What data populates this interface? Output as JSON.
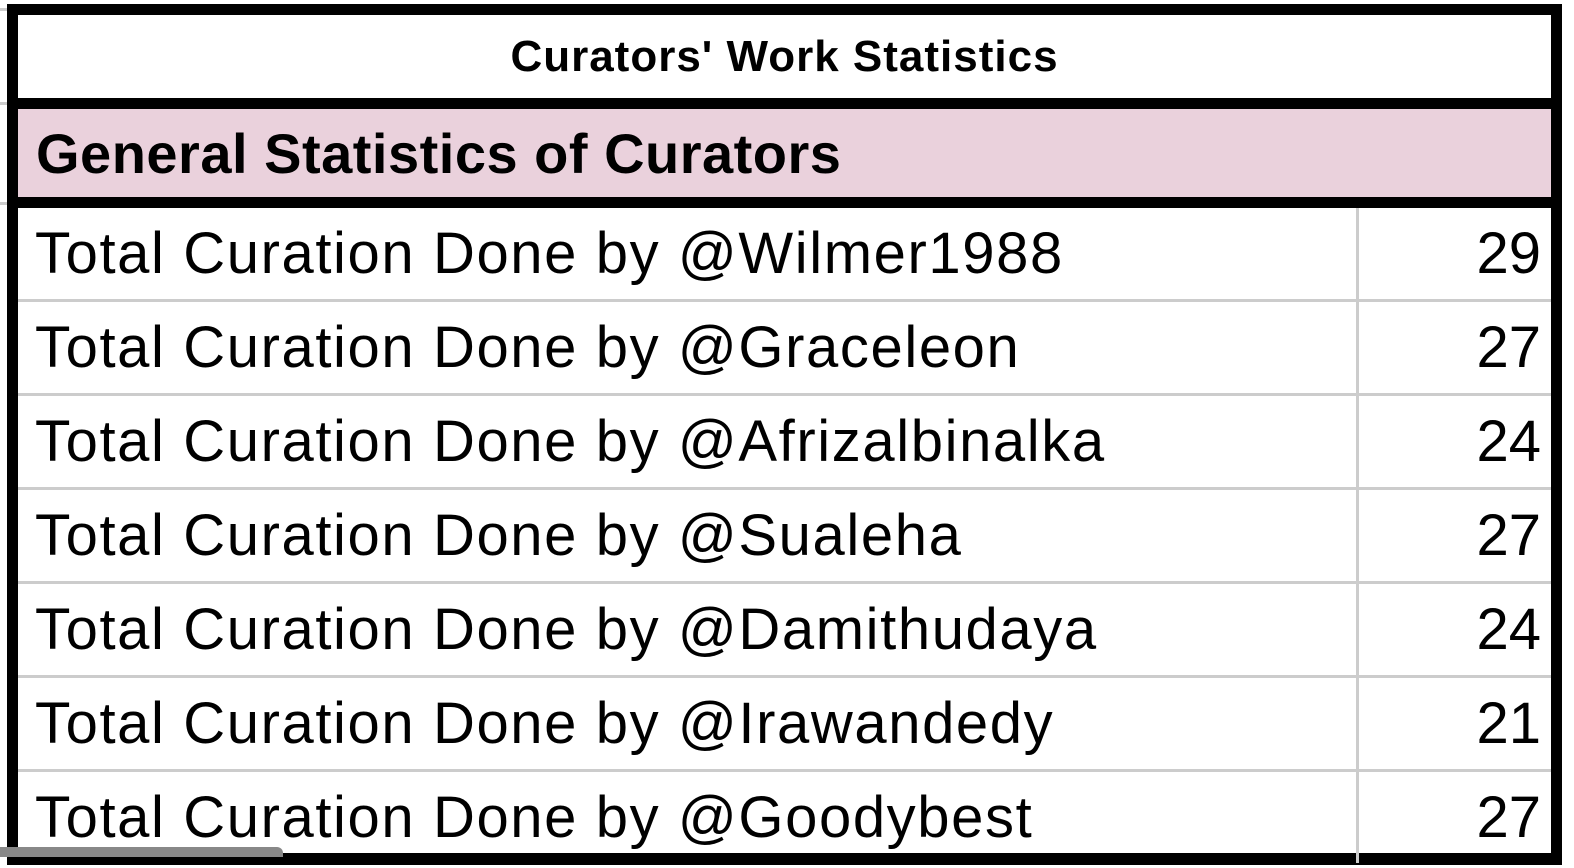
{
  "sheet": {
    "title": "Curators' Work Statistics",
    "section_header": "General Statistics of Curators",
    "header_color": "#ead1dc",
    "rows": [
      {
        "label": "Total Curation Done by @Wilmer1988",
        "value": "29"
      },
      {
        "label": "Total Curation Done by @Graceleon",
        "value": "27"
      },
      {
        "label": "Total Curation Done by @Afrizalbinalka",
        "value": "24"
      },
      {
        "label": "Total Curation Done by @Sualeha",
        "value": "27"
      },
      {
        "label": "Total Curation Done by @Damithudaya",
        "value": "24"
      },
      {
        "label": "Total Curation Done by @Irawandedy",
        "value": "21"
      },
      {
        "label": "Total Curation Done by @Goodybest",
        "value": "27"
      }
    ]
  }
}
